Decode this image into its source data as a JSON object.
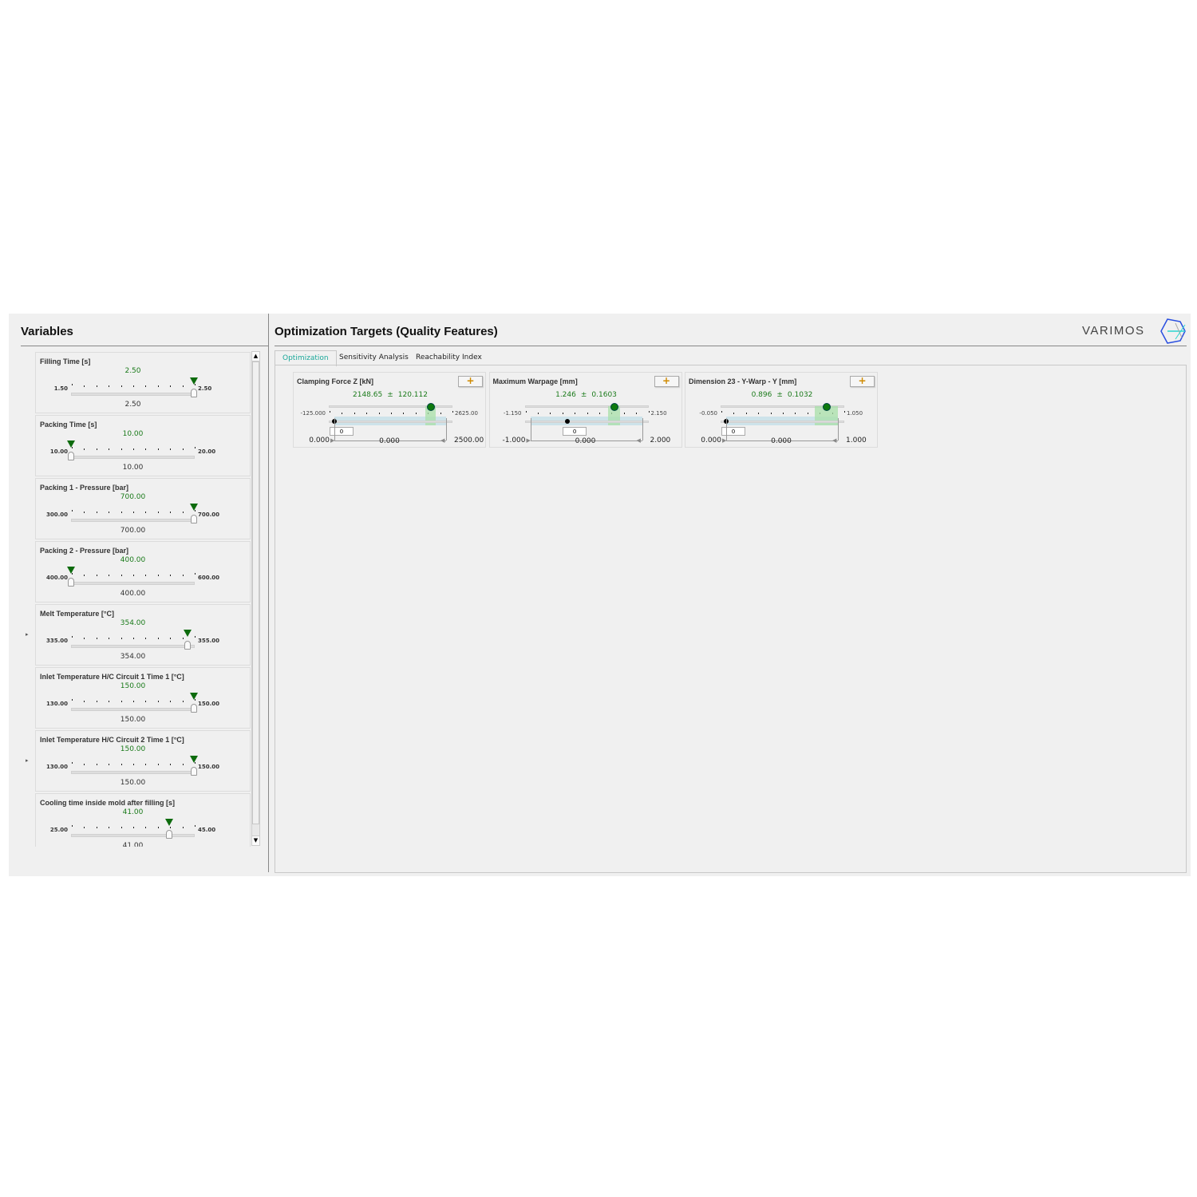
{
  "variables_panel": {
    "title": "Variables",
    "items": [
      {
        "name": "Filling Time [s]",
        "value": "2.50",
        "min": "1.50",
        "max": "2.50",
        "current": "2.50",
        "fraction": 1.0
      },
      {
        "name": "Packing Time [s]",
        "value": "10.00",
        "min": "10.00",
        "max": "20.00",
        "current": "10.00",
        "fraction": 0.0
      },
      {
        "name": "Packing 1 - Pressure [bar]",
        "value": "700.00",
        "min": "300.00",
        "max": "700.00",
        "current": "700.00",
        "fraction": 1.0
      },
      {
        "name": "Packing 2 - Pressure [bar]",
        "value": "400.00",
        "min": "400.00",
        "max": "600.00",
        "current": "400.00",
        "fraction": 0.0
      },
      {
        "name": "Melt Temperature [°C]",
        "value": "354.00",
        "min": "335.00",
        "max": "355.00",
        "current": "354.00",
        "fraction": 0.95
      },
      {
        "name": "Inlet Temperature H/C Circuit 1 Time 1 [°C]",
        "value": "150.00",
        "min": "130.00",
        "max": "150.00",
        "current": "150.00",
        "fraction": 1.0
      },
      {
        "name": "Inlet Temperature H/C Circuit 2 Time 1 [°C]",
        "value": "150.00",
        "min": "130.00",
        "max": "150.00",
        "current": "150.00",
        "fraction": 1.0
      },
      {
        "name": "Cooling time inside mold after filling [s]",
        "value": "41.00",
        "min": "25.00",
        "max": "45.00",
        "current": "41.00",
        "fraction": 0.8
      }
    ]
  },
  "targets_panel": {
    "title": "Optimization Targets (Quality Features)",
    "logo": "VARIMOS",
    "tabs": [
      {
        "label": "Optimization",
        "active": true
      },
      {
        "label": "Sensitivity Analysis"
      },
      {
        "label": "Reachability Index"
      }
    ],
    "targets": [
      {
        "name": "Clamping Force Z [kN]",
        "mean": "2148.65",
        "pm": "±",
        "std": "120.112",
        "range_min": "-125.000",
        "range_max": "2625.00",
        "rmin": -125,
        "rmax": 2625,
        "mean_v": 2148.65,
        "std_v": 120.112,
        "target": "0",
        "lower": "0.000",
        "center": "0.000",
        "upper": "2500.00",
        "lower_v": 0,
        "upper_v": 2500,
        "target_v": 0
      },
      {
        "name": "Maximum Warpage [mm]",
        "mean": "1.246",
        "pm": "±",
        "std": "0.1603",
        "range_min": "-1.150",
        "range_max": "2.150",
        "rmin": -1.15,
        "rmax": 2.15,
        "mean_v": 1.246,
        "std_v": 0.1603,
        "target": "0",
        "lower": "-1.000",
        "center": "0.000",
        "upper": "2.000",
        "lower_v": -1,
        "upper_v": 2,
        "target_v": 0
      },
      {
        "name": "Dimension 23 - Y-Warp - Y [mm]",
        "mean": "0.896",
        "pm": "±",
        "std": "0.1032",
        "range_min": "-0.050",
        "range_max": "1.050",
        "rmin": -0.05,
        "rmax": 1.05,
        "mean_v": 0.896,
        "std_v": 0.1032,
        "target": "0",
        "lower": "0.000",
        "center": "0.000",
        "upper": "1.000",
        "lower_v": 0,
        "upper_v": 1,
        "target_v": 0
      }
    ],
    "add_label": "+"
  },
  "colors": {
    "accent": "#1aa89a",
    "value_green": "#1a7a1a",
    "marker_green": "#0d6b0d",
    "band_green": "#a8e0a8",
    "band_blue": "#cde3ea",
    "plus": "#d08a00"
  }
}
